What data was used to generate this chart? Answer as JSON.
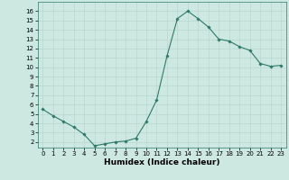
{
  "xlabel": "Humidex (Indice chaleur)",
  "x": [
    0,
    1,
    2,
    3,
    4,
    5,
    6,
    7,
    8,
    9,
    10,
    11,
    12,
    13,
    14,
    15,
    16,
    17,
    18,
    19,
    20,
    21,
    22,
    23
  ],
  "y": [
    5.5,
    4.8,
    4.2,
    3.6,
    2.8,
    1.6,
    1.8,
    2.0,
    2.1,
    2.4,
    4.2,
    6.5,
    11.2,
    15.2,
    16.0,
    15.2,
    14.3,
    13.0,
    12.8,
    12.2,
    11.8,
    10.4,
    10.1,
    10.2
  ],
  "line_color": "#2d7a6b",
  "marker": "D",
  "marker_size": 1.8,
  "line_width": 0.8,
  "ylim": [
    1.4,
    17.0
  ],
  "xlim": [
    -0.5,
    23.5
  ],
  "yticks": [
    2,
    3,
    4,
    5,
    6,
    7,
    8,
    9,
    10,
    11,
    12,
    13,
    14,
    15,
    16
  ],
  "xticks": [
    0,
    1,
    2,
    3,
    4,
    5,
    6,
    7,
    8,
    9,
    10,
    11,
    12,
    13,
    14,
    15,
    16,
    17,
    18,
    19,
    20,
    21,
    22,
    23
  ],
  "bg_color": "#cce8e0",
  "grid_color": "#b8d8d0",
  "tick_fontsize": 5.0,
  "xlabel_fontsize": 6.5
}
